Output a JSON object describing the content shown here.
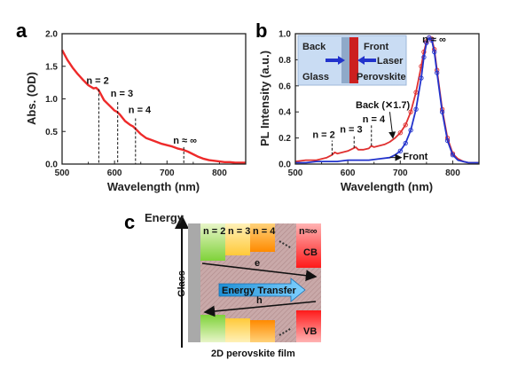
{
  "panels": {
    "a": "a",
    "b": "b",
    "c": "c"
  },
  "chart_data": [
    {
      "type": "line",
      "panel": "a",
      "xlabel": "Wavelength (nm)",
      "ylabel": "Abs. (OD)",
      "xlim": [
        500,
        850
      ],
      "ylim": [
        0.0,
        2.0
      ],
      "xticks": [
        "500",
        "600",
        "700",
        "800"
      ],
      "yticks": [
        "0.0",
        "0.5",
        "1.0",
        "1.5",
        "2.0"
      ],
      "color": "#ee2a2a",
      "series": [
        {
          "x": [
            500,
            510,
            520,
            530,
            540,
            550,
            560,
            565,
            570,
            580,
            590,
            600,
            605,
            610,
            620,
            630,
            635,
            640,
            650,
            660,
            670,
            680,
            690,
            700,
            710,
            720,
            730,
            740,
            750,
            760,
            770,
            780,
            790,
            800,
            810,
            820,
            830,
            840,
            850
          ],
          "y": [
            1.75,
            1.6,
            1.48,
            1.38,
            1.29,
            1.21,
            1.16,
            1.17,
            1.13,
            0.98,
            0.9,
            0.82,
            0.8,
            0.76,
            0.66,
            0.6,
            0.58,
            0.54,
            0.46,
            0.4,
            0.37,
            0.34,
            0.31,
            0.29,
            0.27,
            0.24,
            0.22,
            0.19,
            0.15,
            0.11,
            0.08,
            0.06,
            0.05,
            0.04,
            0.03,
            0.03,
            0.02,
            0.02,
            0.02
          ]
        }
      ],
      "annotations": [
        {
          "text": "n = 2",
          "x": 570,
          "ytop": 1.15
        },
        {
          "text": "n = 3",
          "x": 606,
          "ytop": 0.95
        },
        {
          "text": "n = 4",
          "x": 640,
          "ytop": 0.7
        },
        {
          "text": "n ≈ ∞",
          "x": 732,
          "ytop": 0.26
        }
      ]
    },
    {
      "type": "line",
      "panel": "b",
      "xlabel": "Wavelength (nm)",
      "ylabel": "PL Intensity (a.u.)",
      "xlim": [
        500,
        850
      ],
      "ylim": [
        0.0,
        1.0
      ],
      "xticks": [
        "500",
        "600",
        "700",
        "800"
      ],
      "yticks": [
        "0.0",
        "0.2",
        "0.4",
        "0.6",
        "0.8",
        "1.0"
      ],
      "series": [
        {
          "name": "Back (×1.7)",
          "color": "#e03030",
          "x": [
            500,
            520,
            540,
            560,
            570,
            575,
            580,
            590,
            600,
            610,
            615,
            620,
            630,
            640,
            645,
            650,
            660,
            670,
            680,
            690,
            700,
            710,
            720,
            730,
            740,
            745,
            750,
            755,
            760,
            765,
            770,
            780,
            790,
            800,
            810,
            820,
            830,
            840,
            850
          ],
          "y": [
            0.02,
            0.03,
            0.03,
            0.05,
            0.07,
            0.09,
            0.08,
            0.09,
            0.1,
            0.12,
            0.13,
            0.11,
            0.11,
            0.12,
            0.14,
            0.13,
            0.14,
            0.15,
            0.17,
            0.2,
            0.24,
            0.3,
            0.4,
            0.55,
            0.75,
            0.86,
            0.94,
            0.97,
            0.96,
            0.88,
            0.72,
            0.42,
            0.2,
            0.08,
            0.04,
            0.02,
            0.01,
            0.01,
            0.01
          ]
        },
        {
          "name": "Front",
          "color": "#2233cc",
          "x": [
            500,
            520,
            540,
            560,
            580,
            600,
            620,
            640,
            660,
            680,
            690,
            700,
            710,
            720,
            730,
            740,
            745,
            750,
            755,
            760,
            765,
            770,
            780,
            790,
            800,
            810,
            820,
            830,
            840,
            850
          ],
          "y": [
            0.01,
            0.01,
            0.02,
            0.02,
            0.02,
            0.03,
            0.03,
            0.03,
            0.04,
            0.05,
            0.07,
            0.1,
            0.16,
            0.26,
            0.42,
            0.66,
            0.82,
            0.93,
            0.97,
            0.95,
            0.86,
            0.7,
            0.4,
            0.18,
            0.07,
            0.03,
            0.02,
            0.01,
            0.01,
            0.01
          ]
        }
      ],
      "annotations": [
        {
          "text": "n = 2",
          "x": 570
        },
        {
          "text": "n = 3",
          "x": 612
        },
        {
          "text": "n = 4",
          "x": 645
        },
        {
          "text": "n ≈ ∞",
          "x": 770
        },
        {
          "text": "Back (✕1.7)"
        },
        {
          "text": "Front"
        }
      ],
      "inset": {
        "back": "Back",
        "front": "Front",
        "laser": "Laser",
        "glass": "Glass",
        "perovskite": "Perovskite"
      }
    }
  ],
  "diagram": {
    "energy_label": "Energy",
    "glass_label": "Glass",
    "phases": [
      "n = 2",
      "n = 3",
      "n = 4",
      "n≈∞"
    ],
    "cb_label": "CB",
    "vb_label": "VB",
    "electron_label": "e",
    "hole_label": "h",
    "transfer_label": "Energy Transfer",
    "film_label": "2D perovskite film"
  }
}
